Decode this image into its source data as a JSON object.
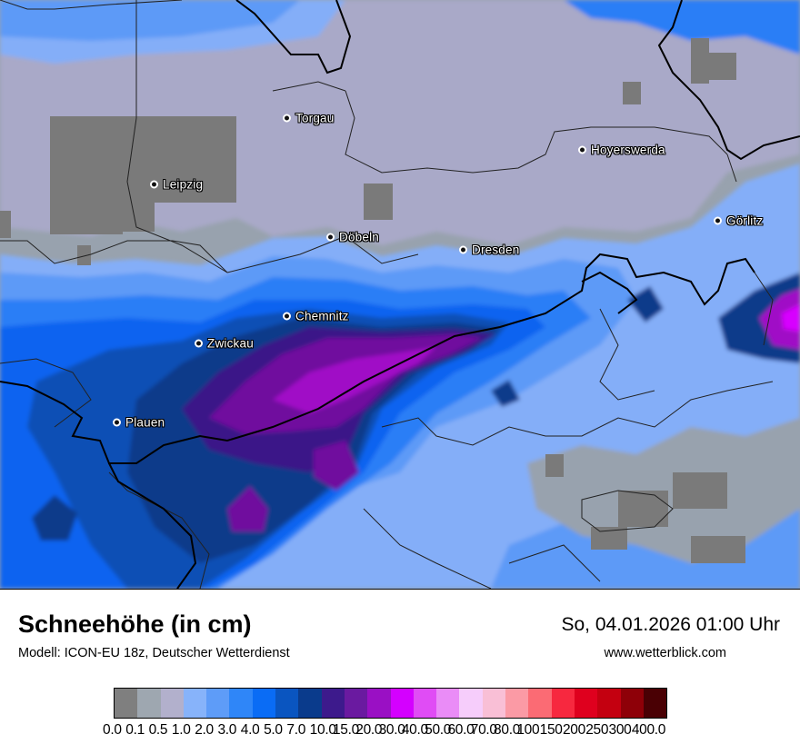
{
  "map": {
    "colors": {
      "gray_dark": "#7a7a7a",
      "gray": "#98a2ae",
      "lavender": "#a9a9c8",
      "blue_pale": "#84aef8",
      "blue_light": "#5d9af7",
      "blue": "#2b7ef6",
      "blue_strong": "#0a63f0",
      "blue_mid": "#0a4fb5",
      "navy": "#083a8a",
      "indigo": "#3a1788",
      "violet": "#6f109e",
      "purple": "#a00fc6",
      "magenta": "#d700ff"
    },
    "cities": [
      {
        "name": "Torgau"
      },
      {
        "name": "Leipzig"
      },
      {
        "name": "Hoyerswerda"
      },
      {
        "name": "Görlitz"
      },
      {
        "name": "Döbeln"
      },
      {
        "name": "Dresden"
      },
      {
        "name": "Chemnitz"
      },
      {
        "name": "Zwickau"
      },
      {
        "name": "Plauen"
      }
    ]
  },
  "footer": {
    "title": "Schneehöhe (in cm)",
    "subtitle": "Modell: ICON-EU 18z, Deutscher Wetterdienst",
    "datetime": "So, 04.01.2026 01:00 Uhr",
    "website": "www.wetterblick.com"
  },
  "legend": {
    "labels": [
      "0.0",
      "0.1",
      "0.5",
      "1.0",
      "2.0",
      "3.0",
      "4.0",
      "5.0",
      "7.0",
      "10.0",
      "15.0",
      "20.0",
      "30.0",
      "40.0",
      "50.0",
      "60.0",
      "70.0",
      "80.0",
      "100",
      "150",
      "200",
      "250",
      "300",
      "400.0"
    ],
    "colors": [
      "#7f7f7f",
      "#9ea7b0",
      "#b2b0cc",
      "#87b3fa",
      "#5e9cf8",
      "#2f86f8",
      "#0a6cf5",
      "#0a55c0",
      "#0a3b8c",
      "#3d1a8c",
      "#6a1aa0",
      "#9a10c4",
      "#d400ff",
      "#e04cf5",
      "#ea8cf7",
      "#f6cdfb",
      "#f9bfd6",
      "#fb9aa5",
      "#fb6b74",
      "#f7283f",
      "#df001e",
      "#c40010",
      "#8e0008",
      "#4a0004"
    ]
  }
}
